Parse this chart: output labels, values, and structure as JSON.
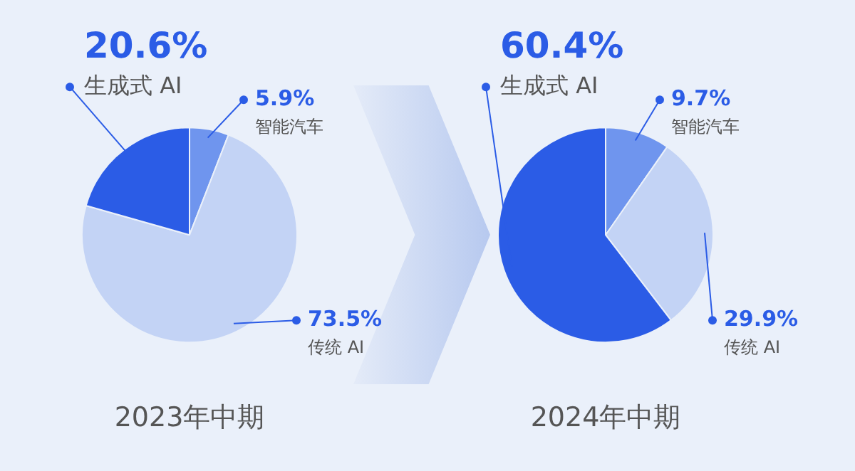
{
  "chart_data": [
    {
      "type": "pie",
      "title": "2023年中期",
      "categories": [
        "智能汽车",
        "传统 AI",
        "生成式 AI"
      ],
      "values": [
        5.9,
        73.5,
        20.6
      ],
      "colors": [
        "#6f95ee",
        "#c3d3f5",
        "#2b5ce6"
      ],
      "value_labels": [
        "5.9%",
        "73.5%",
        "20.6%"
      ]
    },
    {
      "type": "pie",
      "title": "2024年中期",
      "categories": [
        "智能汽车",
        "传统 AI",
        "生成式 AI"
      ],
      "values": [
        9.7,
        29.9,
        60.4
      ],
      "colors": [
        "#6f95ee",
        "#c3d3f5",
        "#2b5ce6"
      ],
      "value_labels": [
        "9.7%",
        "29.9%",
        "60.4%"
      ]
    }
  ]
}
